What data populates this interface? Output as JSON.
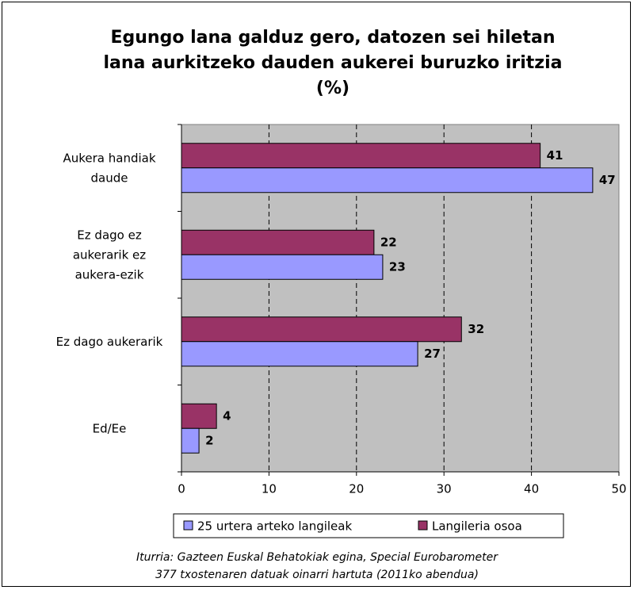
{
  "chart_data": {
    "type": "hbar",
    "title": "Egungo lana galduz gero, datozen sei hiletan lana aurkitzeko dauden aukerei buruzko iritzia (%)",
    "categories": [
      "Aukera handiak daude",
      "Ez dago ez aukerarik ez aukera-ezik",
      "Ez dago aukerarik",
      "Ed/Ee"
    ],
    "series": [
      {
        "name": "25 urtera arteko langileak",
        "color": "#9999ff",
        "values": [
          47,
          23,
          27,
          2
        ]
      },
      {
        "name": "Langileria osoa",
        "color": "#993366",
        "values": [
          41,
          22,
          32,
          4
        ]
      }
    ],
    "xlim": [
      0,
      50
    ],
    "xticks": [
      0,
      10,
      20,
      30,
      40,
      50
    ],
    "grid": true,
    "legend": "bottom",
    "source": "Iturria: Gazteen Euskal Behatokiak egina, Special Eurobarometer 377 txostenaren datuak oinarri hartuta (2011ko abendua)"
  }
}
